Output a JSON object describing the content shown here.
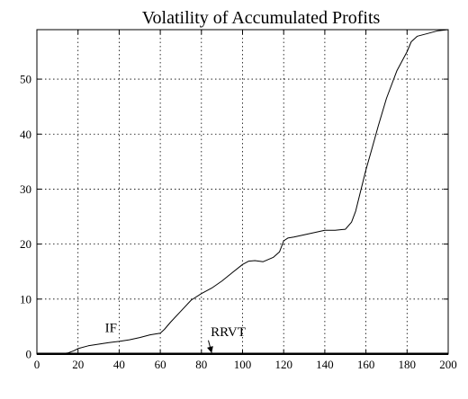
{
  "chart_data": {
    "type": "line",
    "title": "Volatility of Accumulated Profits",
    "xlabel": "",
    "ylabel": "",
    "xlim": [
      0,
      200
    ],
    "ylim": [
      0,
      59
    ],
    "xticks": [
      0,
      20,
      40,
      60,
      80,
      100,
      120,
      140,
      160,
      180,
      200
    ],
    "yticks": [
      0,
      10,
      20,
      30,
      40,
      50
    ],
    "grid": true,
    "line_color": "#000000",
    "series": [
      {
        "name": "IF",
        "x": [
          0,
          10,
          15,
          18,
          20,
          25,
          30,
          35,
          40,
          45,
          50,
          55,
          60,
          62,
          65,
          70,
          75,
          80,
          85,
          90,
          95,
          100,
          103,
          106,
          110,
          115,
          118,
          120,
          122,
          125,
          130,
          135,
          140,
          145,
          150,
          153,
          155,
          157,
          160,
          163,
          166,
          170,
          175,
          180,
          182,
          185,
          190,
          195,
          200
        ],
        "y": [
          0,
          0,
          0.2,
          0.6,
          1.0,
          1.5,
          1.8,
          2.1,
          2.3,
          2.6,
          3.0,
          3.5,
          3.8,
          4.5,
          5.8,
          7.8,
          9.8,
          11.0,
          12.0,
          13.3,
          14.8,
          16.3,
          16.9,
          17.0,
          16.8,
          17.6,
          18.6,
          20.6,
          21.1,
          21.3,
          21.7,
          22.1,
          22.5,
          22.5,
          22.7,
          24.0,
          26.0,
          29.0,
          33.5,
          37.5,
          41.5,
          46.5,
          51.5,
          55.0,
          56.8,
          57.8,
          58.3,
          58.8,
          59.0
        ]
      },
      {
        "name": "RRVT",
        "x": [
          0,
          200
        ],
        "y": [
          0.05,
          0.05
        ]
      }
    ],
    "annotations": [
      {
        "text": "IF",
        "x": 36,
        "y": 4.0,
        "arrow_to": null
      },
      {
        "text": "RRVT",
        "x": 93,
        "y": 3.3,
        "arrow_to": [
          85,
          0.2
        ]
      }
    ]
  }
}
